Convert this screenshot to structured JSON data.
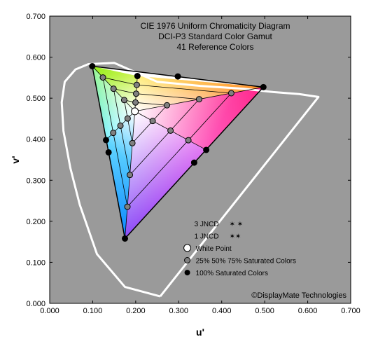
{
  "title_lines": [
    "CIE 1976 Uniform Chromaticity Diagram",
    "DCI-P3 Standard Color Gamut",
    "41 Reference Colors"
  ],
  "title_fontsize": 12,
  "watermark": "©DisplayMate Technologies",
  "watermark_fontsize": 11,
  "axes": {
    "xlabel": "u'",
    "ylabel": "v'",
    "label_fontsize": 14,
    "xlim": [
      0.0,
      0.7
    ],
    "ylim": [
      0.0,
      0.7
    ],
    "xticks": [
      0.0,
      0.1,
      0.2,
      0.3,
      0.4,
      0.5,
      0.6,
      0.7
    ],
    "yticks": [
      0.0,
      0.1,
      0.2,
      0.3,
      0.4,
      0.5,
      0.6,
      0.7
    ],
    "tick_format": "0.000",
    "tick_inside_len": 4,
    "tick_fontsize": 11,
    "plot_bg": "#9a9a9a",
    "outer_bg": "#ffffff",
    "axis_color": "#000000"
  },
  "spectral_locus": {
    "stroke": "#ffffff",
    "stroke_width": 3,
    "points": [
      [
        0.257,
        0.017
      ],
      [
        0.175,
        0.04
      ],
      [
        0.11,
        0.12
      ],
      [
        0.07,
        0.24
      ],
      [
        0.048,
        0.33
      ],
      [
        0.032,
        0.42
      ],
      [
        0.028,
        0.49
      ],
      [
        0.035,
        0.54
      ],
      [
        0.06,
        0.57
      ],
      [
        0.09,
        0.583
      ],
      [
        0.15,
        0.586
      ],
      [
        0.25,
        0.54
      ],
      [
        0.35,
        0.53
      ],
      [
        0.45,
        0.523
      ],
      [
        0.52,
        0.515
      ],
      [
        0.58,
        0.51
      ],
      [
        0.625,
        0.503
      ]
    ],
    "purple_line_from": [
      0.625,
      0.503
    ],
    "purple_line_to": [
      0.257,
      0.017
    ]
  },
  "gamut_triangle": {
    "stroke": "#000000",
    "stroke_width": 1.5,
    "vertices": {
      "red": {
        "u": 0.497,
        "v": 0.527,
        "color": "#ff0000"
      },
      "green": {
        "u": 0.099,
        "v": 0.578,
        "color": "#00ff00"
      },
      "blue": {
        "u": 0.175,
        "v": 0.158,
        "color": "#0000ff"
      }
    },
    "fill_stops": {
      "red": "#ff2a2a",
      "green": "#22ee22",
      "blue": "#1528ff",
      "yellow": "#ffee10",
      "cyan": "#00e5ff",
      "magenta": "#ff20e5",
      "white": "#ffffff"
    }
  },
  "white_point": {
    "u": 0.198,
    "v": 0.468,
    "stroke": "#000000",
    "fill": "#ffffff",
    "r": 5
  },
  "saturation_levels": [
    0.25,
    0.5,
    0.75,
    1.0
  ],
  "inner_hues": [
    "red",
    "yellow",
    "green",
    "cyan",
    "blue",
    "magenta"
  ],
  "hue_points_100": {
    "red": {
      "u": 0.497,
      "v": 0.527
    },
    "yellow": {
      "u": 0.204,
      "v": 0.554
    },
    "green": {
      "u": 0.099,
      "v": 0.578
    },
    "cyan": {
      "u": 0.131,
      "v": 0.398
    },
    "blue": {
      "u": 0.175,
      "v": 0.158
    },
    "magenta": {
      "u": 0.364,
      "v": 0.374
    }
  },
  "edge_midpoints_100": {
    "rg": {
      "u": 0.298,
      "v": 0.553
    },
    "gb": {
      "u": 0.137,
      "v": 0.368
    },
    "br": {
      "u": 0.336,
      "v": 0.343
    }
  },
  "marker_styles": {
    "sat_marker": {
      "fill": "#808080",
      "stroke": "#000000",
      "r": 4
    },
    "full_marker": {
      "fill": "#000000",
      "stroke": "#000000",
      "r": 4
    }
  },
  "legend": {
    "x": 0.32,
    "y_top": 0.195,
    "line_step": 0.03,
    "fontsize": 10,
    "items": [
      {
        "type": "jncd3",
        "label": "3 JNCD"
      },
      {
        "type": "jncd1",
        "label": "1 JNCD"
      },
      {
        "type": "white_point",
        "label": "White Point"
      },
      {
        "type": "sat_marker",
        "label": "25% 50% 75% Saturated Colors"
      },
      {
        "type": "full_marker",
        "label": "100% Saturated Colors"
      }
    ],
    "jncd_star": "✶",
    "jncd_star_fontsize": 10
  }
}
